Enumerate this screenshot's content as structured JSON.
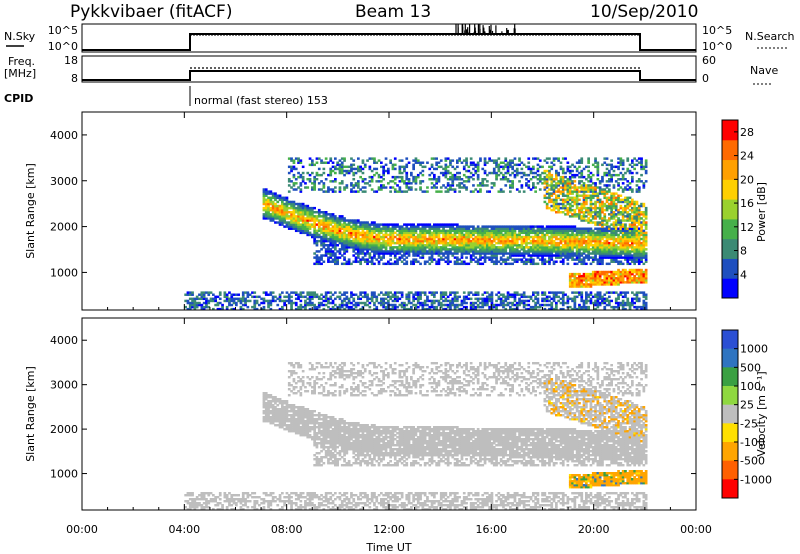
{
  "header": {
    "station": "Pykkvibaer (fitACF)",
    "beam": "Beam 13",
    "date": "10/Sep/2010"
  },
  "nsky_panel": {
    "left_label": "N.Sky",
    "right_label": "N.Search",
    "left_ticks": [
      "10^5",
      "10^0"
    ],
    "right_ticks": [
      "10^5",
      "10^0"
    ]
  },
  "freq_panel": {
    "left_label_1": "Freq.",
    "left_label_2": "[MHz]",
    "right_label": "Nave",
    "left_ticks": [
      "18",
      "8"
    ],
    "right_ticks": [
      "60",
      "0"
    ]
  },
  "cpid": {
    "label": "CPID",
    "value": "normal (fast stereo) 153"
  },
  "colors": {
    "power_scale": [
      "#0000ff",
      "#1e4fbf",
      "#3b8a74",
      "#46b04a",
      "#9ad12e",
      "#ffd000",
      "#ffa000",
      "#ff6a00",
      "#ff0000"
    ],
    "velocity_scale": [
      "#2b4fd4",
      "#2f74c0",
      "#3aa042",
      "#8fd840",
      "#bebebe",
      "#ffe000",
      "#ffa500",
      "#ff6000",
      "#ff0000"
    ]
  },
  "chart_data": [
    {
      "type": "heatmap",
      "name": "power",
      "title": "",
      "xlabel": "Time UT",
      "ylabel": "Slant Range [km]",
      "xlim": [
        "00:00",
        "24:00"
      ],
      "ylim": [
        180,
        4500
      ],
      "x_ticks": [
        "00:00",
        "04:00",
        "08:00",
        "12:00",
        "16:00",
        "20:00",
        "00:00"
      ],
      "y_ticks": [
        1000,
        2000,
        3000,
        4000
      ],
      "colorbar": {
        "label": "Power [dB]",
        "ticks": [
          4,
          8,
          12,
          16,
          20,
          24,
          28
        ],
        "range": [
          0,
          30
        ]
      },
      "data_coverage_hours": [
        4.0,
        22.0
      ],
      "features": [
        {
          "name": "main-arc",
          "start_h": 7.0,
          "end_h": 22.0,
          "range_start_km": 2500,
          "range_min_km": 1700,
          "range_min_at_h": 12.5,
          "range_end_km": 1600,
          "peak_db": 22
        },
        {
          "name": "upper-band",
          "start_h": 8.0,
          "end_h": 22.0,
          "range_km": 3100,
          "peak_db": 10
        },
        {
          "name": "late-high-band",
          "start_h": 18.0,
          "end_h": 22.0,
          "range_km": 2800,
          "peak_db": 18
        },
        {
          "name": "near-range-echo",
          "start_h": 19.0,
          "end_h": 22.0,
          "range_km": 800,
          "peak_db": 28
        },
        {
          "name": "ground-scatter-floor",
          "start_h": 4.0,
          "end_h": 22.0,
          "range_km": 300,
          "peak_db": 8
        }
      ]
    },
    {
      "type": "heatmap",
      "name": "velocity",
      "title": "",
      "xlabel": "Time UT",
      "ylabel": "Slant Range [km]",
      "xlim": [
        "00:00",
        "24:00"
      ],
      "ylim": [
        180,
        4500
      ],
      "x_ticks": [
        "00:00",
        "04:00",
        "08:00",
        "12:00",
        "16:00",
        "20:00",
        "00:00"
      ],
      "y_ticks": [
        1000,
        2000,
        3000,
        4000
      ],
      "colorbar": {
        "label": "Velocity [m s⁻¹]",
        "ticks": [
          "1000",
          "500",
          "100",
          "25",
          "-25",
          "-100",
          "-500",
          "-1000"
        ]
      },
      "data_coverage_hours": [
        4.0,
        22.0
      ],
      "dominant_value_range": [
        -25,
        25
      ]
    }
  ]
}
